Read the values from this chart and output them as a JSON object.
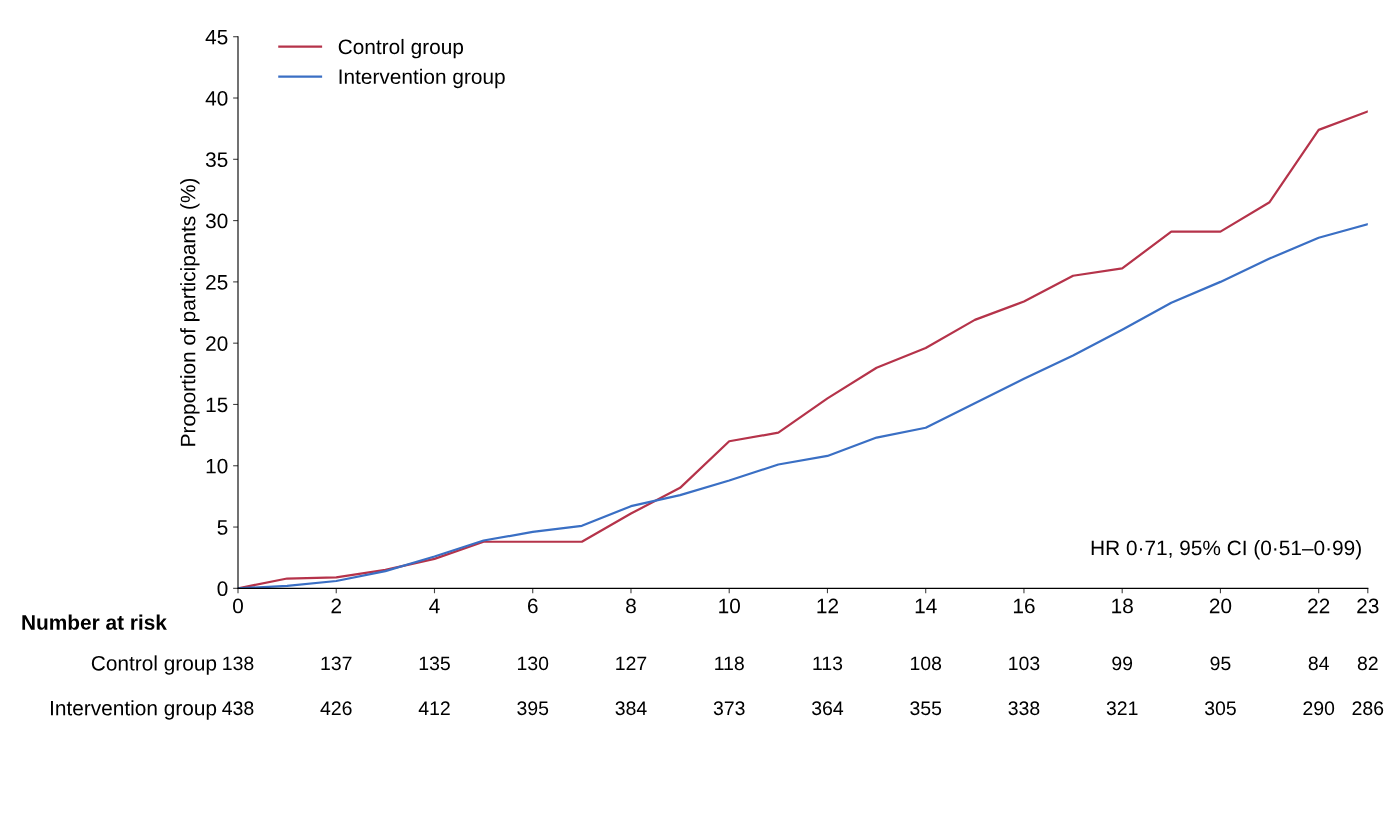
{
  "chart_data": {
    "type": "line",
    "ylabel": "Proportion of participants (%)",
    "x": [
      0,
      1,
      2,
      3,
      4,
      5,
      6,
      7,
      8,
      9,
      10,
      11,
      12,
      13,
      14,
      15,
      16,
      17,
      18,
      19,
      20,
      21,
      22,
      23
    ],
    "series": [
      {
        "name": "Control group",
        "color": "#b5334a",
        "values": [
          0,
          0.8,
          0.9,
          1.5,
          2.4,
          3.8,
          3.8,
          3.8,
          6.1,
          8.2,
          12.0,
          12.7,
          15.5,
          18.0,
          19.6,
          21.9,
          23.4,
          25.5,
          26.1,
          29.1,
          29.1,
          31.5,
          37.4,
          38.9
        ]
      },
      {
        "name": "Intervention group",
        "color": "#3a6fc4",
        "values": [
          0,
          0.2,
          0.6,
          1.4,
          2.6,
          3.9,
          4.6,
          5.1,
          6.7,
          7.6,
          8.8,
          10.1,
          10.8,
          12.3,
          13.1,
          15.1,
          17.1,
          19.0,
          21.1,
          23.3,
          25.0,
          26.9,
          28.6,
          29.7
        ]
      }
    ],
    "xlim": [
      0,
      23
    ],
    "xticks": [
      0,
      2,
      4,
      6,
      8,
      10,
      12,
      14,
      16,
      18,
      20,
      22,
      23
    ],
    "ylim": [
      0,
      45
    ],
    "yticks": [
      0,
      5,
      10,
      15,
      20,
      25,
      30,
      35,
      40,
      45
    ],
    "grid": false,
    "legend": "top left",
    "marker": "none",
    "line_style": "solid",
    "annotations": [
      "HR 0·71, 95% CI (0·51–0·99)",
      "Number at risk",
      "Control group",
      "138",
      "137",
      "135",
      "130",
      "127",
      "118",
      "113",
      "108",
      "103",
      "99",
      "95",
      "84",
      "82",
      "Intervention group",
      "438",
      "426",
      "412",
      "395",
      "384",
      "373",
      "364",
      "355",
      "338",
      "321",
      "305",
      "290",
      "286"
    ]
  }
}
